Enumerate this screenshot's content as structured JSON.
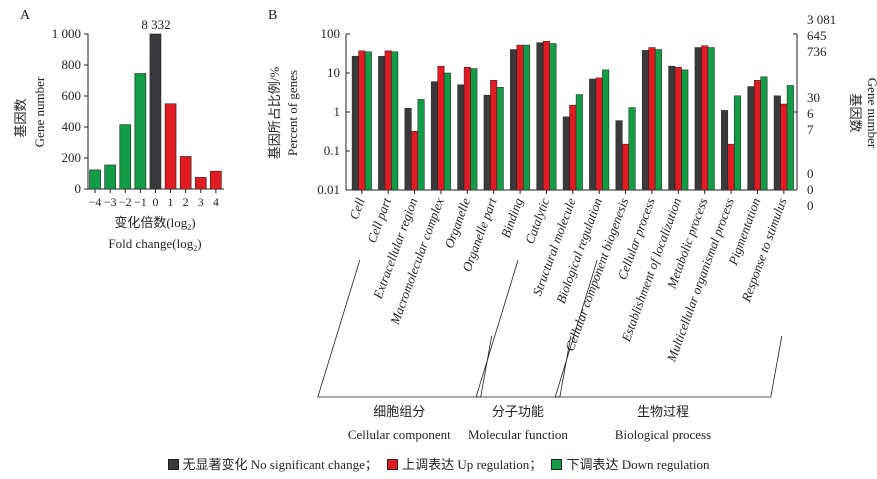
{
  "colors": {
    "none": "#3a3a3c",
    "up": "#e21b23",
    "down": "#119c45",
    "axis": "#231f20"
  },
  "chart_data": [
    {
      "panel": "A",
      "type": "bar",
      "ylabel_cn": "基因数",
      "ylabel_en": "Gene number",
      "xlabel_cn": "变化倍数(log",
      "xlabel_sub": "2",
      "xlabel_close": ")",
      "xlabel_en": "Fold change(log",
      "categories": [
        "−4",
        "−3",
        "−2",
        "−1",
        "0",
        "1",
        "2",
        "3",
        "4"
      ],
      "values": [
        123,
        155,
        415,
        745,
        1000,
        550,
        210,
        75,
        115
      ],
      "top_label": "8 332",
      "series_type": [
        "down",
        "down",
        "down",
        "down",
        "none",
        "up",
        "up",
        "up",
        "up"
      ],
      "yticks": [
        0,
        200,
        400,
        600,
        800,
        1000
      ],
      "ytick_labels": [
        "0",
        "200",
        "400",
        "600",
        "800",
        "1 000"
      ],
      "ylim": [
        0,
        1000
      ]
    },
    {
      "panel": "B",
      "type": "bar",
      "yscale": "log",
      "ylabel_cn": "基因所占比例/%",
      "ylabel_en": "Percent of genes",
      "right_label_cn": "基因数",
      "right_label_en": "Gene number",
      "yticks": [
        0.01,
        0.1,
        1,
        10,
        100
      ],
      "ytick_labels": [
        "0.01",
        "0.1",
        "1",
        "10",
        "100"
      ],
      "ylim": [
        0.01,
        100
      ],
      "right_ticks": [
        {
          "at": 100,
          "labels": [
            "3 081",
            "645",
            "736"
          ]
        },
        {
          "at": 1,
          "labels": [
            "30",
            "6",
            "7"
          ]
        },
        {
          "at": 0.01,
          "labels": [
            "0",
            "0",
            "0"
          ]
        }
      ],
      "categories": [
        "Cell",
        "Cell part",
        "Extracellular region",
        "Macromolecular complex",
        "Organelle",
        "Organelle part",
        "Binding",
        "Catalytic",
        "Structural molecule",
        "Biological regulation",
        "Cellular component biogenesis",
        "Cellular process",
        "Establishment of localization",
        "Metabolic process",
        "Multicellular organismal process",
        "Pigmentation",
        "Response to stimulus"
      ],
      "series": [
        {
          "name": "No significant change",
          "key": "none",
          "values": [
            27,
            27,
            1.25,
            6,
            5,
            2.7,
            40,
            60,
            0.75,
            7,
            0.6,
            38,
            15,
            45,
            1.1,
            4.5,
            2.6
          ]
        },
        {
          "name": "Up regulation",
          "key": "up",
          "values": [
            37,
            37,
            0.32,
            15,
            14,
            6.5,
            52,
            65,
            1.5,
            7.5,
            0.15,
            45,
            14,
            50,
            0.15,
            6.5,
            1.6
          ]
        },
        {
          "name": "Down regulation",
          "key": "down",
          "values": [
            35,
            35,
            2.1,
            10,
            13,
            4.3,
            52,
            57,
            2.8,
            12,
            1.3,
            40,
            12,
            45,
            2.6,
            8,
            4.8
          ]
        }
      ],
      "groups": [
        {
          "label_cn": "细胞组分",
          "label_en": "Cellular component",
          "first": 0,
          "last": 5
        },
        {
          "label_cn": "分子功能",
          "label_en": "Molecular function",
          "first": 6,
          "last": 8
        },
        {
          "label_cn": "生物过程",
          "label_en": "Biological process",
          "first": 9,
          "last": 16
        }
      ]
    }
  ],
  "panels": {
    "a": "A",
    "b": "B"
  },
  "legend": [
    {
      "key": "none",
      "label_cn": "无显著变化",
      "label_en": "No significant change",
      "sep": "；"
    },
    {
      "key": "up",
      "label_cn": "上调表达",
      "label_en": "Up regulation",
      "sep": "；"
    },
    {
      "key": "down",
      "label_cn": "下调表达",
      "label_en": "Down regulation",
      "sep": ""
    }
  ]
}
